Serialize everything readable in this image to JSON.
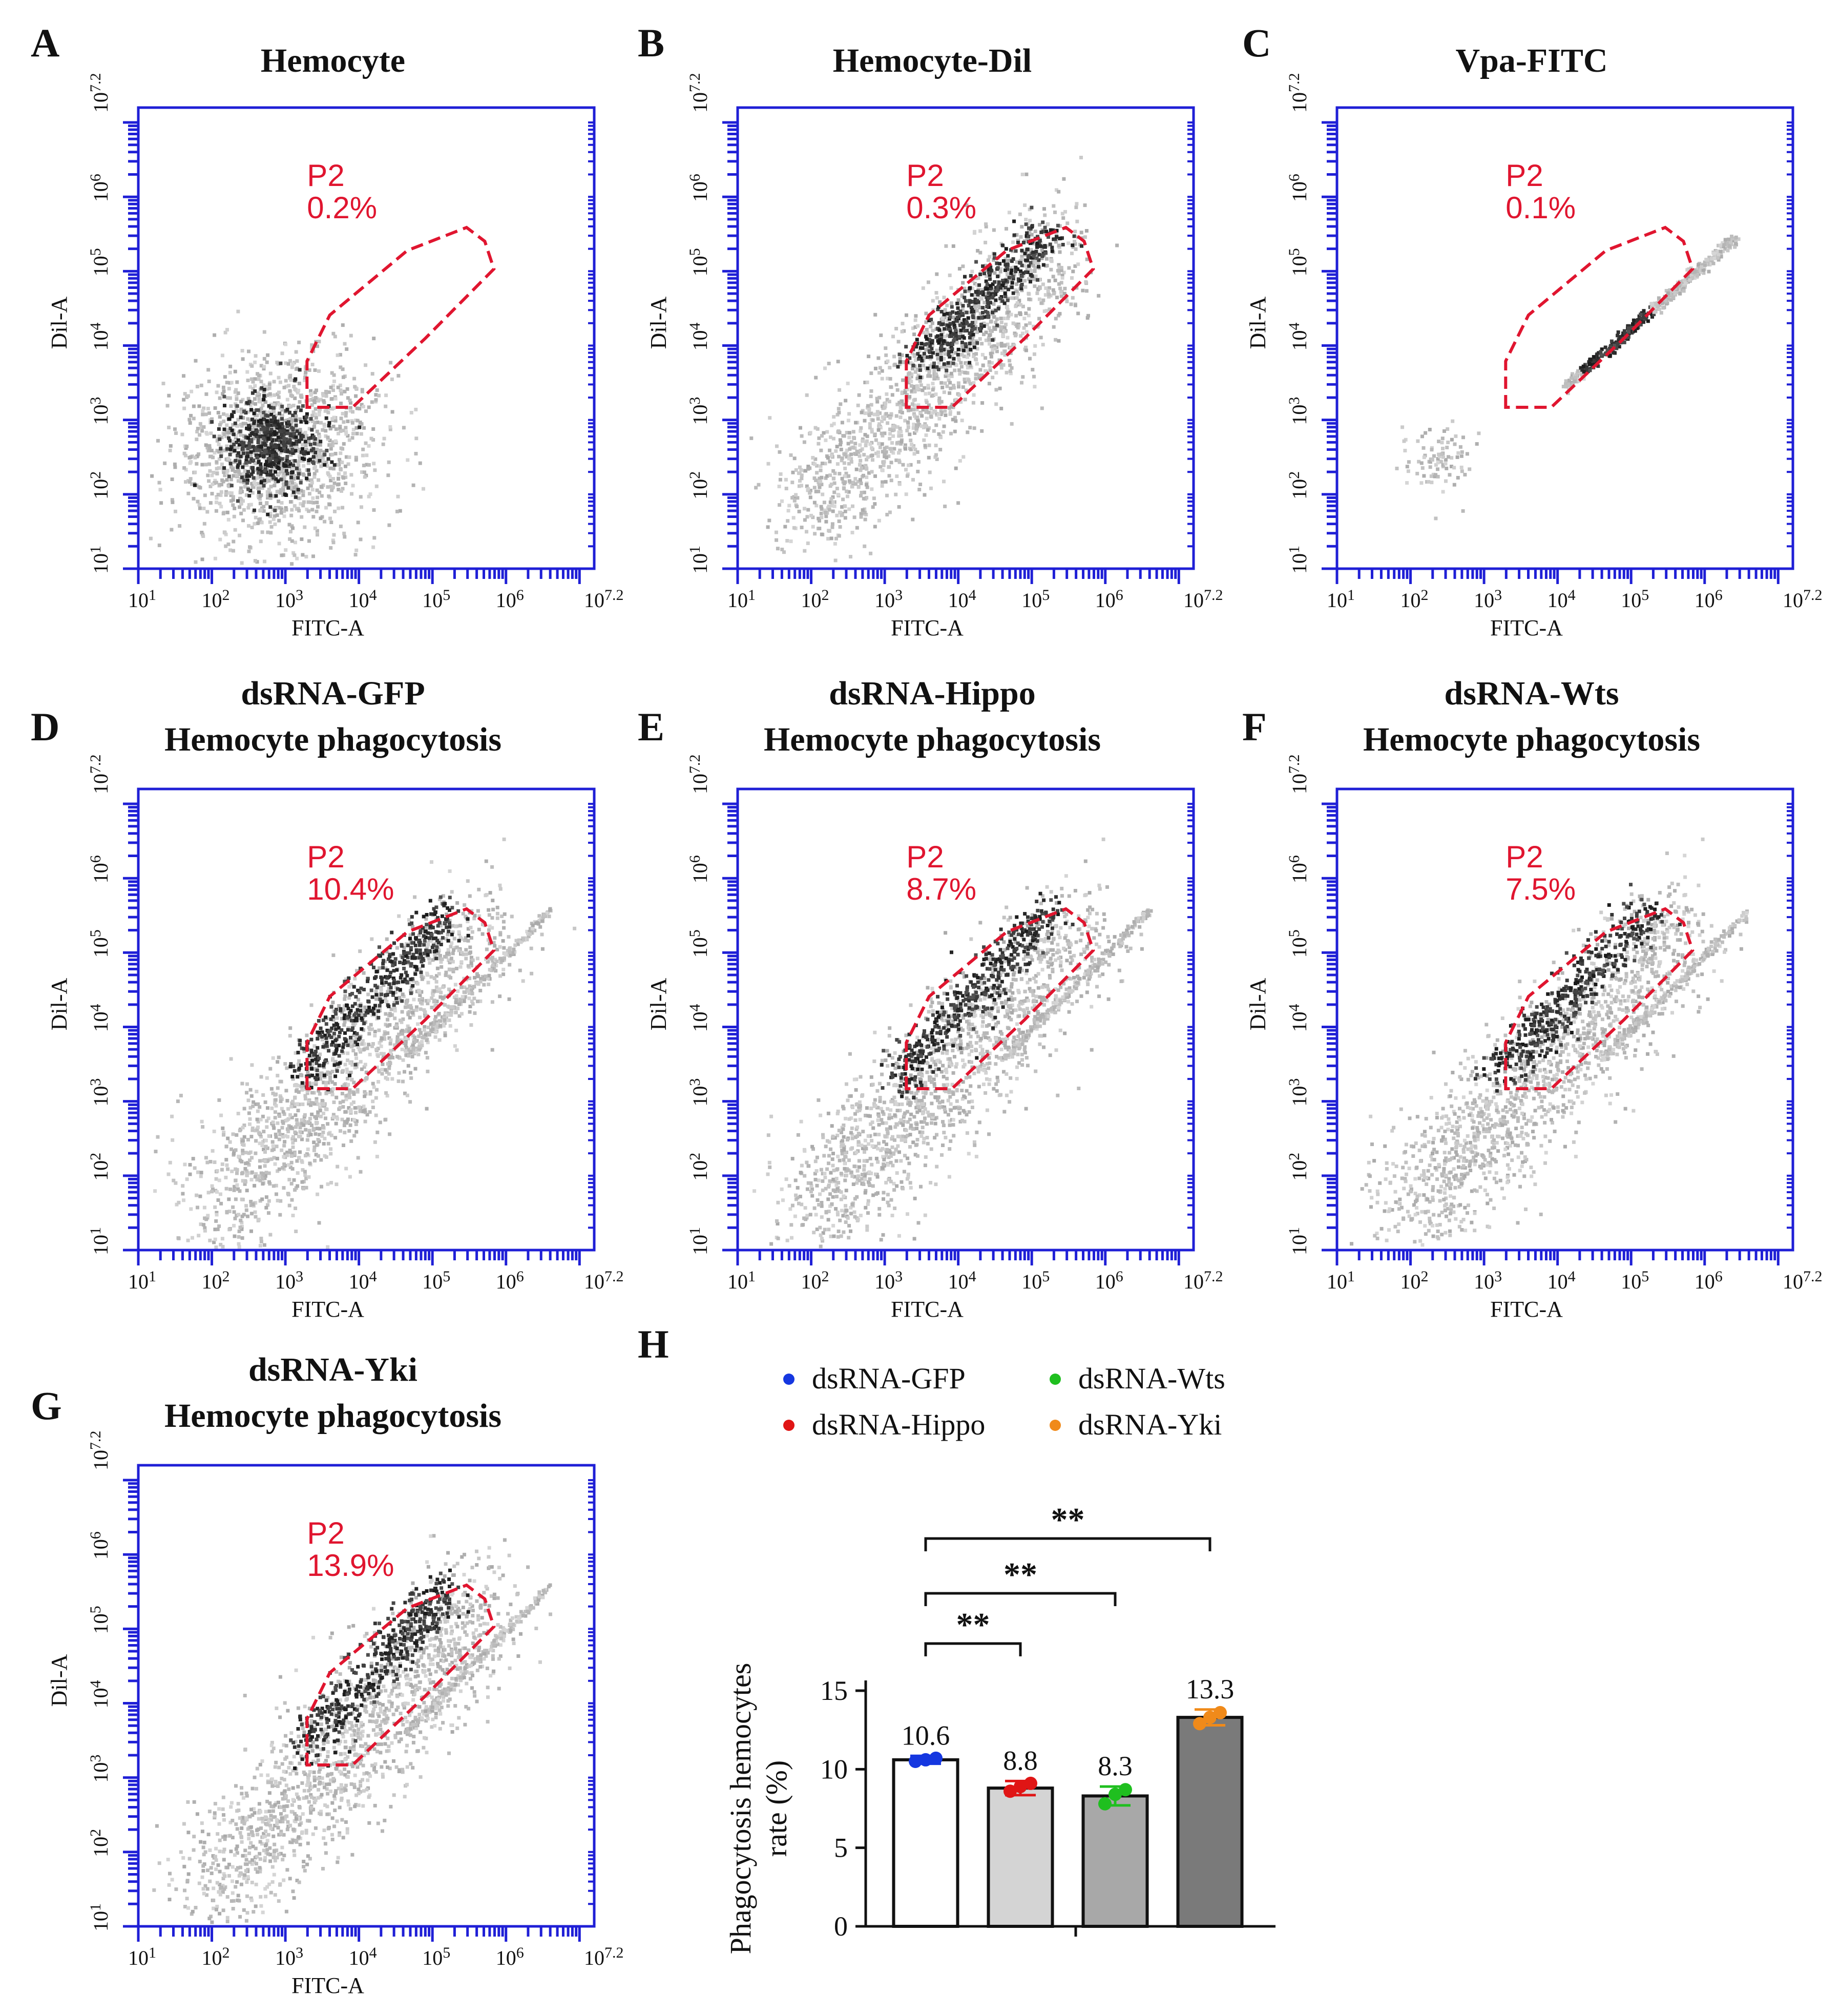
{
  "colors": {
    "axis_blue": "#1f1fd6",
    "gate_red": "#e0152f",
    "cloud_light": "#bdbdbd",
    "cloud_dark": "#1a1a1a"
  },
  "flow_panels": [
    {
      "letter": "A",
      "title_lines": [
        "Hemocyte"
      ],
      "gate_label": "P2",
      "gate_pct": "0.2%",
      "x_label": "FITC-A",
      "y_label": "Dil-A",
      "pattern": "blob"
    },
    {
      "letter": "B",
      "title_lines": [
        "Hemocyte-Dil"
      ],
      "gate_label": "P2",
      "gate_pct": "0.3%",
      "x_label": "FITC-A",
      "y_label": "Dil-A",
      "pattern": "diagonal-wide"
    },
    {
      "letter": "C",
      "title_lines": [
        "Vpa-FITC"
      ],
      "gate_label": "P2",
      "gate_pct": "0.1%",
      "x_label": "FITC-A",
      "y_label": "Dil-A",
      "pattern": "thin-line"
    },
    {
      "letter": "D",
      "title_lines": [
        "dsRNA-GFP",
        "Hemocyte phagocytosis"
      ],
      "gate_label": "P2",
      "gate_pct": "10.4%",
      "x_label": "FITC-A",
      "y_label": "Dil-A",
      "pattern": "phago"
    },
    {
      "letter": "E",
      "title_lines": [
        "dsRNA-Hippo",
        "Hemocyte phagocytosis"
      ],
      "gate_label": "P2",
      "gate_pct": "8.7%",
      "x_label": "FITC-A",
      "y_label": "Dil-A",
      "pattern": "phago"
    },
    {
      "letter": "F",
      "title_lines": [
        "dsRNA-Wts",
        "Hemocyte phagocytosis"
      ],
      "gate_label": "P2",
      "gate_pct": "7.5%",
      "x_label": "FITC-A",
      "y_label": "Dil-A",
      "pattern": "phago"
    },
    {
      "letter": "G",
      "title_lines": [
        "dsRNA-Yki",
        "Hemocyte phagocytosis"
      ],
      "gate_label": "P2",
      "gate_pct": "13.9%",
      "x_label": "FITC-A",
      "y_label": "Dil-A",
      "pattern": "phago"
    }
  ],
  "flow_axis": {
    "tick_base": "10",
    "exponents": [
      "1",
      "2",
      "3",
      "4",
      "5",
      "6",
      "7.2"
    ]
  },
  "chart_data": {
    "type": "bar",
    "panel_letter": "H",
    "categories": [
      "dsRNA-GFP",
      "dsRNA-Hippo",
      "dsRNA-Wts",
      "dsRNA-Yki"
    ],
    "values": [
      10.6,
      8.8,
      8.3,
      13.3
    ],
    "value_labels": [
      "10.6",
      "8.8",
      "8.3",
      "13.3"
    ],
    "errors": [
      0.25,
      0.45,
      0.6,
      0.5
    ],
    "points": [
      [
        10.5,
        10.6,
        10.7
      ],
      [
        8.6,
        8.9,
        9.1
      ],
      [
        7.8,
        8.4,
        8.7
      ],
      [
        12.9,
        13.3,
        13.6
      ]
    ],
    "bar_colors": [
      "#ffffff",
      "#d4d4d4",
      "#a8a8a8",
      "#7a7a7a"
    ],
    "point_colors": [
      "#1537e0",
      "#e01515",
      "#1fbf1f",
      "#f08a1a"
    ],
    "ylabel_lines": [
      "Phagocytosis hemocytes",
      "rate (%)"
    ],
    "ylim": [
      0,
      15
    ],
    "yticks": [
      "0",
      "5",
      "10",
      "15"
    ],
    "significance": [
      {
        "from": 0,
        "to": 1,
        "label": "**"
      },
      {
        "from": 0,
        "to": 2,
        "label": "**"
      },
      {
        "from": 0,
        "to": 3,
        "label": "**"
      }
    ],
    "legend": [
      "dsRNA-GFP",
      "dsRNA-Hippo",
      "dsRNA-Wts",
      "dsRNA-Yki"
    ]
  }
}
